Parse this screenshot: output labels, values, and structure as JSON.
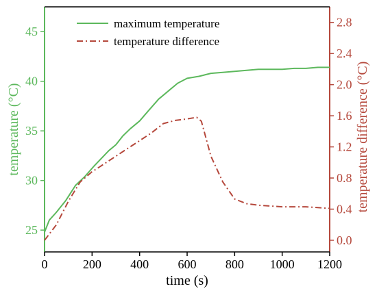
{
  "chart_data": {
    "type": "line",
    "title": "",
    "xlabel": "time (s)",
    "ylabel_left": "temperature (°C)",
    "ylabel_right": "temperature difference (°C)",
    "xlim": [
      0,
      1200
    ],
    "ylim_left": [
      22.8,
      47.5
    ],
    "ylim_right": [
      -0.15,
      3.0
    ],
    "xticks": [
      0,
      200,
      400,
      600,
      800,
      1000,
      1200
    ],
    "yticks_left": [
      25,
      30,
      35,
      40,
      45
    ],
    "yticks_right": [
      0.0,
      0.4,
      0.8,
      1.2,
      1.6,
      2.0,
      2.4,
      2.8
    ],
    "grid": false,
    "legend_position": "top-left",
    "colors": {
      "left_axis": "#5cb85c",
      "right_axis": "#b5483c",
      "series_max": "#5cb85c",
      "series_diff": "#b5483c"
    },
    "series": [
      {
        "name": "maximum temperature",
        "axis": "left",
        "style": "solid",
        "x": [
          0,
          20,
          50,
          90,
          130,
          170,
          210,
          250,
          270,
          300,
          330,
          360,
          400,
          440,
          480,
          520,
          560,
          600,
          650,
          700,
          750,
          800,
          850,
          900,
          950,
          1000,
          1050,
          1100,
          1150,
          1200
        ],
        "y": [
          24.8,
          26.0,
          26.8,
          28.0,
          29.5,
          30.4,
          31.5,
          32.5,
          33.0,
          33.6,
          34.5,
          35.2,
          36.0,
          37.1,
          38.2,
          39.0,
          39.8,
          40.3,
          40.5,
          40.8,
          40.9,
          41.0,
          41.1,
          41.2,
          41.2,
          41.2,
          41.3,
          41.3,
          41.4,
          41.4
        ]
      },
      {
        "name": "temperature difference",
        "axis": "right",
        "style": "dash-dot",
        "x": [
          0,
          50,
          100,
          150,
          200,
          250,
          300,
          350,
          400,
          450,
          500,
          550,
          600,
          640,
          660,
          700,
          750,
          800,
          850,
          900,
          950,
          1000,
          1050,
          1100,
          1150,
          1200
        ],
        "y": [
          0.0,
          0.2,
          0.5,
          0.75,
          0.88,
          0.98,
          1.08,
          1.18,
          1.28,
          1.38,
          1.5,
          1.54,
          1.56,
          1.58,
          1.53,
          1.08,
          0.75,
          0.53,
          0.47,
          0.45,
          0.44,
          0.43,
          0.43,
          0.43,
          0.42,
          0.41
        ]
      }
    ]
  }
}
